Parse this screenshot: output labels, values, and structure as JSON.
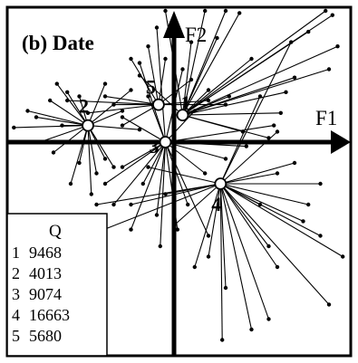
{
  "chart_data": {
    "type": "scatter",
    "title": "(b) Date",
    "axis_labels": {
      "x": "F1",
      "y": "F2"
    },
    "legend": {
      "header": "Q",
      "entries": [
        {
          "id": "1",
          "value": "9468"
        },
        {
          "id": "2",
          "value": "4013"
        },
        {
          "id": "3",
          "value": "9074"
        },
        {
          "id": "4",
          "value": "16663"
        },
        {
          "id": "5",
          "value": "5680"
        }
      ]
    },
    "legend_placement": "bottom-left",
    "grid": false,
    "xlim": [
      -1.0,
      1.0
    ],
    "ylim": [
      -1.0,
      1.0
    ],
    "centroids": [
      {
        "id": "1",
        "x": 0.05,
        "y": 0.13
      },
      {
        "id": "2",
        "x": -0.5,
        "y": 0.08
      },
      {
        "id": "3",
        "x": -0.05,
        "y": 0.0
      },
      {
        "id": "4",
        "x": 0.27,
        "y": -0.2
      },
      {
        "id": "5",
        "x": -0.09,
        "y": 0.18
      }
    ],
    "points": [
      {
        "c": "1",
        "x": 0.88,
        "y": 0.66
      },
      {
        "c": "1",
        "x": 0.92,
        "y": 0.61
      },
      {
        "c": "1",
        "x": 0.78,
        "y": 0.53
      },
      {
        "c": "1",
        "x": 0.95,
        "y": 0.46
      },
      {
        "c": "1",
        "x": 0.9,
        "y": 0.35
      },
      {
        "c": "1",
        "x": 0.7,
        "y": 0.31
      },
      {
        "c": "1",
        "x": 0.65,
        "y": 0.24
      },
      {
        "c": "1",
        "x": 0.62,
        "y": 0.14
      },
      {
        "c": "1",
        "x": 0.45,
        "y": 0.4
      },
      {
        "c": "1",
        "x": 0.38,
        "y": 0.62
      },
      {
        "c": "1",
        "x": 0.3,
        "y": 0.82
      },
      {
        "c": "1",
        "x": 0.18,
        "y": 0.75
      },
      {
        "c": "1",
        "x": 0.25,
        "y": 0.5
      },
      {
        "c": "1",
        "x": 0.2,
        "y": 0.25
      },
      {
        "c": "1",
        "x": 0.1,
        "y": 0.48
      },
      {
        "c": "1",
        "x": -0.05,
        "y": 0.72
      },
      {
        "c": "1",
        "x": 0.4,
        "y": 0.05
      },
      {
        "c": "1",
        "x": 0.55,
        "y": 0.02
      },
      {
        "c": "1",
        "x": -0.2,
        "y": 0.32
      },
      {
        "c": "1",
        "x": 0.32,
        "y": 0.22
      },
      {
        "c": "2",
        "x": -0.93,
        "y": 0.07
      },
      {
        "c": "2",
        "x": -0.85,
        "y": 0.15
      },
      {
        "c": "2",
        "x": -0.78,
        "y": 0.0
      },
      {
        "c": "2",
        "x": -0.72,
        "y": 0.2
      },
      {
        "c": "2",
        "x": -0.7,
        "y": -0.05
      },
      {
        "c": "2",
        "x": -0.65,
        "y": 0.08
      },
      {
        "c": "2",
        "x": -0.62,
        "y": 0.24
      },
      {
        "c": "2",
        "x": -0.55,
        "y": 0.22
      },
      {
        "c": "2",
        "x": -0.4,
        "y": 0.28
      },
      {
        "c": "2",
        "x": -0.3,
        "y": 0.15
      },
      {
        "c": "2",
        "x": -0.55,
        "y": -0.1
      },
      {
        "c": "2",
        "x": -0.45,
        "y": -0.15
      },
      {
        "c": "2",
        "x": -0.35,
        "y": -0.12
      },
      {
        "c": "2",
        "x": -0.6,
        "y": -0.2
      },
      {
        "c": "2",
        "x": -0.48,
        "y": -0.25
      },
      {
        "c": "2",
        "x": -0.4,
        "y": -0.08
      },
      {
        "c": "2",
        "x": -0.8,
        "y": 0.12
      },
      {
        "c": "2",
        "x": -0.2,
        "y": 0.06
      },
      {
        "c": "2",
        "x": -0.68,
        "y": 0.28
      },
      {
        "c": "2",
        "x": -0.25,
        "y": 0.25
      },
      {
        "c": "3",
        "x": -0.1,
        "y": 0.55
      },
      {
        "c": "3",
        "x": -0.2,
        "y": 0.38
      },
      {
        "c": "3",
        "x": 0.05,
        "y": 0.35
      },
      {
        "c": "3",
        "x": -0.3,
        "y": 0.12
      },
      {
        "c": "3",
        "x": -0.3,
        "y": -0.12
      },
      {
        "c": "3",
        "x": -0.18,
        "y": -0.2
      },
      {
        "c": "3",
        "x": -0.1,
        "y": -0.35
      },
      {
        "c": "3",
        "x": -0.08,
        "y": -0.5
      },
      {
        "c": "3",
        "x": 0.02,
        "y": -0.42
      },
      {
        "c": "3",
        "x": 0.08,
        "y": -0.3
      },
      {
        "c": "3",
        "x": 0.18,
        "y": -0.15
      },
      {
        "c": "3",
        "x": 0.3,
        "y": -0.08
      },
      {
        "c": "3",
        "x": 0.42,
        "y": -0.02
      },
      {
        "c": "3",
        "x": 0.58,
        "y": 0.08
      },
      {
        "c": "3",
        "x": -0.35,
        "y": -0.3
      },
      {
        "c": "3",
        "x": -0.25,
        "y": -0.42
      },
      {
        "c": "3",
        "x": -0.4,
        "y": -0.2
      },
      {
        "c": "3",
        "x": 0.12,
        "y": 0.15
      },
      {
        "c": "3",
        "x": -0.15,
        "y": 0.22
      },
      {
        "c": "3",
        "x": 0.2,
        "y": -0.45
      },
      {
        "c": "4",
        "x": 0.55,
        "y": -0.85
      },
      {
        "c": "4",
        "x": 0.9,
        "y": -0.78
      },
      {
        "c": "4",
        "x": 0.98,
        "y": -0.55
      },
      {
        "c": "4",
        "x": 0.85,
        "y": -0.45
      },
      {
        "c": "4",
        "x": 0.75,
        "y": -0.38
      },
      {
        "c": "4",
        "x": 0.78,
        "y": -0.3
      },
      {
        "c": "4",
        "x": 0.85,
        "y": -0.2
      },
      {
        "c": "4",
        "x": 0.6,
        "y": -0.15
      },
      {
        "c": "4",
        "x": 0.5,
        "y": -0.3
      },
      {
        "c": "4",
        "x": 0.55,
        "y": -0.5
      },
      {
        "c": "4",
        "x": 0.6,
        "y": -0.6
      },
      {
        "c": "4",
        "x": 0.45,
        "y": -0.9
      },
      {
        "c": "4",
        "x": 0.28,
        "y": -0.95
      },
      {
        "c": "4",
        "x": 0.3,
        "y": -0.7
      },
      {
        "c": "4",
        "x": 0.2,
        "y": -0.55
      },
      {
        "c": "4",
        "x": 0.12,
        "y": -0.6
      },
      {
        "c": "4",
        "x": 0.0,
        "y": -0.4
      },
      {
        "c": "4",
        "x": -0.05,
        "y": -0.25
      },
      {
        "c": "4",
        "x": -0.25,
        "y": -0.3
      },
      {
        "c": "4",
        "x": -0.5,
        "y": -0.45
      },
      {
        "c": "4",
        "x": -0.45,
        "y": -0.3
      },
      {
        "c": "4",
        "x": -0.15,
        "y": -0.12
      },
      {
        "c": "4",
        "x": 0.7,
        "y": -0.1
      },
      {
        "c": "4",
        "x": 0.6,
        "y": 0.05
      },
      {
        "c": "4",
        "x": 0.68,
        "y": 0.48
      },
      {
        "c": "4",
        "x": 0.5,
        "y": 0.22
      },
      {
        "c": "5",
        "x": -0.62,
        "y": 0.2
      },
      {
        "c": "5",
        "x": -0.4,
        "y": 0.22
      },
      {
        "c": "5",
        "x": -0.5,
        "y": 0.14
      },
      {
        "c": "5",
        "x": -0.3,
        "y": 0.08
      },
      {
        "c": "5",
        "x": -0.25,
        "y": 0.4
      },
      {
        "c": "5",
        "x": -0.15,
        "y": 0.46
      },
      {
        "c": "5",
        "x": -0.05,
        "y": 0.4
      },
      {
        "c": "5",
        "x": 0.1,
        "y": 0.3
      },
      {
        "c": "5",
        "x": 0.2,
        "y": 0.2
      },
      {
        "c": "5",
        "x": 0.3,
        "y": 0.18
      },
      {
        "c": "5",
        "x": -0.35,
        "y": 0.18
      }
    ]
  }
}
